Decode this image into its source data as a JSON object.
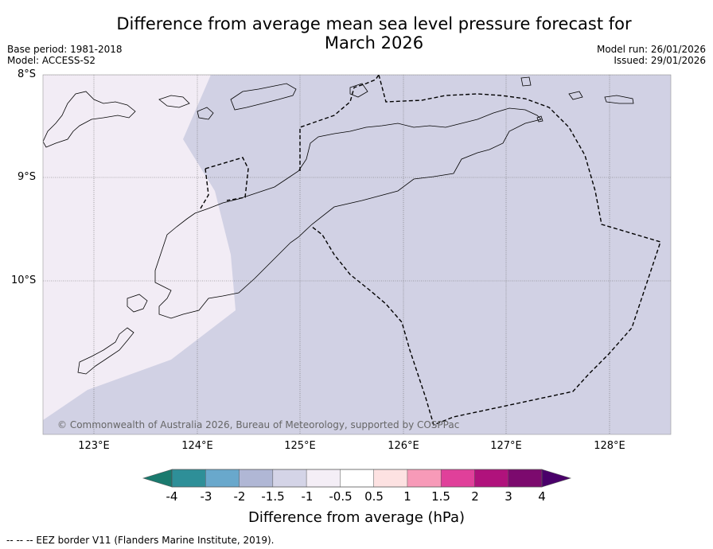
{
  "title_line1": "Difference from average mean sea level pressure forecast for",
  "title_line2": "March 2026",
  "meta": {
    "base_period": "Base period: 1981-2018",
    "model": "Model: ACCESS-S2",
    "model_run": "Model run: 26/01/2026",
    "issued": "Issued: 29/01/2026"
  },
  "map": {
    "lat_labels": [
      "8°S",
      "9°S",
      "10°S"
    ],
    "lon_labels": [
      "123°E",
      "124°E",
      "125°E",
      "126°E",
      "127°E",
      "128°E"
    ],
    "copyright": "© Commonwealth of Australia 2026, Bureau of Meteorology, supported by COSPPac",
    "extent": {
      "lon_min": 122.5,
      "lon_max": 128.6,
      "lat_max": -8.0,
      "lat_min": -11.5
    },
    "regions": [
      {
        "name": "west-region",
        "value_class": "-1 to -0.5",
        "color": "#f2ecf5"
      },
      {
        "name": "main-region",
        "value_class": "-1.5 to -1",
        "color": "#d1d1e4"
      }
    ]
  },
  "colorbar": {
    "title": "Difference from average (hPa)",
    "labels": [
      "-4",
      "-3",
      "-2",
      "-1.5",
      "-1",
      "-0.5",
      "0.5",
      "1",
      "1.5",
      "2",
      "3",
      "4"
    ],
    "colors": [
      "#1a7a6e",
      "#2e8f98",
      "#69a8cc",
      "#b0b7d5",
      "#d4d4e7",
      "#f4eef6",
      "#ffffff",
      "#fde2e2",
      "#f79ab8",
      "#e0409a",
      "#b0127c",
      "#7c0a6e",
      "#4a006a"
    ]
  },
  "footnote": "--  --  -- EEZ border V11 (Flanders Marine Institute, 2019)."
}
